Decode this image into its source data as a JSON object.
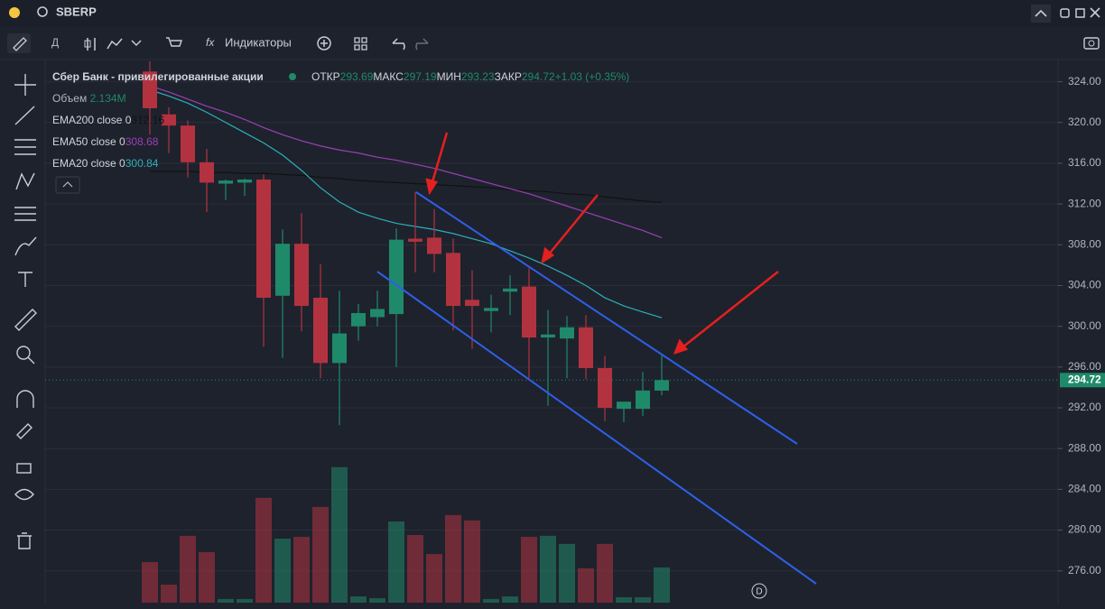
{
  "topbar": {
    "symbol": "SBERP"
  },
  "toolbar": {
    "interval": "Д",
    "indicators": "Индикаторы"
  },
  "legend": {
    "instrument": "Сбер Банк - привилегированные акции",
    "open_label": "ОТКР",
    "high_label": "МАКС",
    "low_label": "МИН",
    "close_label": "ЗАКР",
    "change": "+1.03 (+0.35%)",
    "volume_label": "Объем",
    "volume_value_label": "2.134M"
  },
  "marker": "D",
  "chart_data": {
    "type": "candlestick",
    "up_color": "#1f8a6a",
    "down_color": "#b2333f",
    "open": [
      325.0,
      320.8,
      319.7,
      316.1,
      314.0,
      314.1,
      314.4,
      303.0,
      308.1,
      302.8,
      296.4,
      300.0,
      300.9,
      301.2,
      308.6,
      308.7,
      307.2,
      302.6,
      301.5,
      303.4,
      303.9,
      298.9,
      298.8,
      299.9,
      295.9,
      291.9,
      291.9,
      293.69
    ],
    "high": [
      326.0,
      321.5,
      320.2,
      317.4,
      314.4,
      314.5,
      314.9,
      309.5,
      311.1,
      306.1,
      303.5,
      302.2,
      303.5,
      309.6,
      313.2,
      311.5,
      308.6,
      305.5,
      303.1,
      305.0,
      305.7,
      301.6,
      301.0,
      301.1,
      297.1,
      292.4,
      295.5,
      297.19
    ],
    "low": [
      318.8,
      317.0,
      314.6,
      311.2,
      312.4,
      312.8,
      298.0,
      296.9,
      299.5,
      294.9,
      290.3,
      298.6,
      300.0,
      296.0,
      305.3,
      305.3,
      299.6,
      297.8,
      299.4,
      301.1,
      294.9,
      292.2,
      294.9,
      294.8,
      290.7,
      290.6,
      291.2,
      293.23
    ],
    "close": [
      321.4,
      319.7,
      316.1,
      314.1,
      314.3,
      314.4,
      302.8,
      308.1,
      302.0,
      296.4,
      299.3,
      301.3,
      301.7,
      308.5,
      308.3,
      307.1,
      302.0,
      302.0,
      301.8,
      303.7,
      298.9,
      299.2,
      299.9,
      295.9,
      292.0,
      292.6,
      293.7,
      294.72
    ],
    "volume": [
      2.46,
      1.09,
      4.05,
      3.06,
      0.22,
      0.22,
      6.35,
      3.88,
      3.99,
      5.8,
      8.21,
      0.38,
      0.27,
      4.92,
      4.1,
      2.95,
      5.31,
      4.98,
      0.22,
      0.38,
      3.99,
      4.05,
      3.56,
      2.08,
      3.56,
      0.33,
      0.33,
      2.134
    ],
    "ylim": [
      272.7,
      326.0
    ],
    "yticks": [
      {
        "value": 324,
        "label": "324.00"
      },
      {
        "value": 320,
        "label": "320.00"
      },
      {
        "value": 316,
        "label": "316.00"
      },
      {
        "value": 312,
        "label": "312.00"
      },
      {
        "value": 308,
        "label": "308.00"
      },
      {
        "value": 304,
        "label": "304.00"
      },
      {
        "value": 300,
        "label": "300.00"
      },
      {
        "value": 296,
        "label": "296.00"
      },
      {
        "value": 292,
        "label": "292.00"
      },
      {
        "value": 288,
        "label": "288.00"
      },
      {
        "value": 284,
        "label": "284.00"
      },
      {
        "value": 280,
        "label": "280.00"
      },
      {
        "value": 276,
        "label": "276.00"
      }
    ],
    "grid": true,
    "series": [
      {
        "name": "EMA200 close 0",
        "color": "#111111",
        "values": [
          315.2,
          315.2,
          315.2,
          315.1,
          315.1,
          315.0,
          315.0,
          314.9,
          314.8,
          314.6,
          314.5,
          314.3,
          314.2,
          314.1,
          314.0,
          313.9,
          313.8,
          313.7,
          313.6,
          313.4,
          313.3,
          313.2,
          313.0,
          312.9,
          312.7,
          312.5,
          312.3,
          312.16
        ]
      },
      {
        "name": "EMA50 close 0",
        "color": "#9c3fb5",
        "values": [
          323.6,
          323.0,
          322.3,
          321.6,
          321.0,
          320.3,
          319.5,
          318.8,
          318.2,
          317.7,
          317.3,
          317.0,
          316.6,
          316.3,
          315.9,
          315.5,
          315.0,
          314.5,
          314.0,
          313.5,
          313.0,
          312.4,
          311.8,
          311.2,
          310.6,
          310.0,
          309.4,
          308.68
        ]
      },
      {
        "name": "EMA20 close 0",
        "color": "#2bb0b8",
        "values": [
          323.2,
          322.6,
          321.9,
          321.0,
          320.0,
          319.0,
          318.0,
          316.8,
          315.3,
          313.6,
          312.2,
          311.2,
          310.6,
          310.1,
          309.8,
          309.5,
          309.1,
          308.6,
          308.1,
          307.4,
          306.7,
          305.9,
          305.0,
          304.0,
          302.8,
          302.0,
          301.4,
          300.84
        ]
      }
    ]
  }
}
